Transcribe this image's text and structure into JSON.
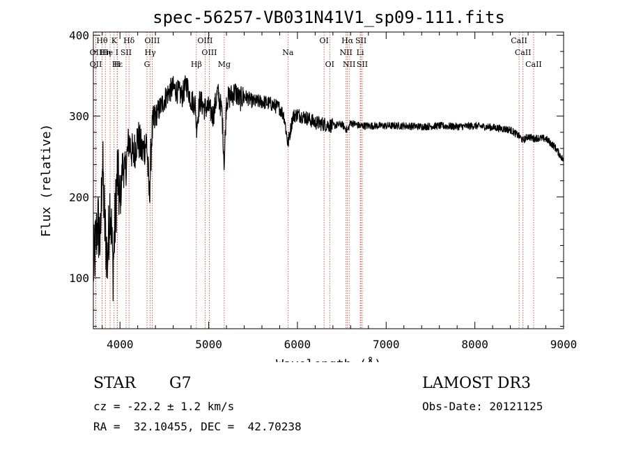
{
  "chart_data": {
    "type": "line",
    "title": "spec-56257-VB031N41V1_sp09-111.fits",
    "xlabel": "Wavelength (Å)",
    "ylabel": "Flux (relative)",
    "xlim": [
      3700,
      9000
    ],
    "ylim": [
      37,
      404
    ],
    "xticks": [
      4000,
      5000,
      6000,
      7000,
      8000,
      9000
    ],
    "xtick_labels": [
      "4000",
      "5000",
      "6000",
      "7000",
      "8000",
      "9000"
    ],
    "yticks": [
      100,
      200,
      300,
      400
    ],
    "ytick_labels": [
      "100",
      "200",
      "300",
      "400"
    ],
    "grid": false,
    "series": [
      {
        "name": "flux",
        "x": [
          3700,
          3750,
          3780,
          3800,
          3830,
          3860,
          3890,
          3920,
          3950,
          3970,
          4000,
          4030,
          4060,
          4100,
          4150,
          4200,
          4250,
          4300,
          4330,
          4360,
          4400,
          4450,
          4500,
          4550,
          4600,
          4650,
          4700,
          4750,
          4800,
          4850,
          4861,
          4900,
          4950,
          5000,
          5050,
          5100,
          5150,
          5175,
          5200,
          5250,
          5300,
          5350,
          5400,
          5500,
          5600,
          5700,
          5800,
          5850,
          5893,
          5950,
          6000,
          6100,
          6200,
          6300,
          6400,
          6500,
          6563,
          6600,
          6700,
          6800,
          7000,
          7200,
          7400,
          7600,
          7800,
          8000,
          8200,
          8400,
          8500,
          8542,
          8600,
          8662,
          8700,
          8800,
          8900,
          9000
        ],
        "values": [
          110,
          170,
          140,
          250,
          160,
          120,
          200,
          110,
          180,
          230,
          190,
          240,
          230,
          270,
          250,
          275,
          255,
          270,
          200,
          280,
          300,
          310,
          320,
          330,
          335,
          330,
          325,
          340,
          320,
          315,
          285,
          320,
          310,
          310,
          300,
          330,
          305,
          240,
          320,
          325,
          330,
          320,
          325,
          318,
          318,
          315,
          310,
          300,
          265,
          300,
          302,
          298,
          292,
          290,
          288,
          290,
          282,
          292,
          288,
          288,
          288,
          288,
          287,
          288,
          287,
          288,
          286,
          283,
          275,
          270,
          275,
          272,
          273,
          272,
          262,
          245
        ]
      }
    ],
    "lines": [
      {
        "name": "Hθ",
        "wavelength": 3798,
        "row": 1
      },
      {
        "name": "OII",
        "wavelength": 3727,
        "row": 2
      },
      {
        "name": "Hη",
        "wavelength": 3835,
        "row": 2
      },
      {
        "name": "OII",
        "wavelength": 3727,
        "row": 3
      },
      {
        "name": "Hε",
        "wavelength": 3970,
        "row": 3
      },
      {
        "name": "K",
        "wavelength": 3934,
        "row": 1
      },
      {
        "name": "He I",
        "wavelength": 3889,
        "row": 2
      },
      {
        "name": "SII",
        "wavelength": 4069,
        "row": 2
      },
      {
        "name": "H",
        "wavelength": 3968,
        "row": 3
      },
      {
        "name": "Hδ",
        "wavelength": 4102,
        "row": 1
      },
      {
        "name": "OIII",
        "wavelength": 4363,
        "row": 1
      },
      {
        "name": "Hγ",
        "wavelength": 4341,
        "row": 2
      },
      {
        "name": "G",
        "wavelength": 4305,
        "row": 3
      },
      {
        "name": "Hβ",
        "wavelength": 4861,
        "row": 3
      },
      {
        "name": "OIII",
        "wavelength": 4959,
        "row": 1
      },
      {
        "name": "OIII",
        "wavelength": 5007,
        "row": 2
      },
      {
        "name": "Mg",
        "wavelength": 5175,
        "row": 3
      },
      {
        "name": "Na",
        "wavelength": 5893,
        "row": 2
      },
      {
        "name": "OI",
        "wavelength": 6300,
        "row": 1
      },
      {
        "name": "OI",
        "wavelength": 6364,
        "row": 3
      },
      {
        "name": "Hα",
        "wavelength": 6563,
        "row": 1
      },
      {
        "name": "NII",
        "wavelength": 6548,
        "row": 2
      },
      {
        "name": "NII",
        "wavelength": 6583,
        "row": 3
      },
      {
        "name": "SII",
        "wavelength": 6716,
        "row": 1
      },
      {
        "name": "Li",
        "wavelength": 6708,
        "row": 2
      },
      {
        "name": "SII",
        "wavelength": 6731,
        "row": 3
      },
      {
        "name": "CaII",
        "wavelength": 8498,
        "row": 1
      },
      {
        "name": "CaII",
        "wavelength": 8542,
        "row": 2
      },
      {
        "name": "CaII",
        "wavelength": 8662,
        "row": 3
      }
    ]
  },
  "info": {
    "class": "STAR",
    "subclass": "G7",
    "cz": "cz = -22.2 ± 1.2 km/s",
    "coords": "RA =  32.10455, DEC =  42.70238",
    "survey": "LAMOST DR3",
    "obs_date": "Obs-Date: 20121125"
  }
}
